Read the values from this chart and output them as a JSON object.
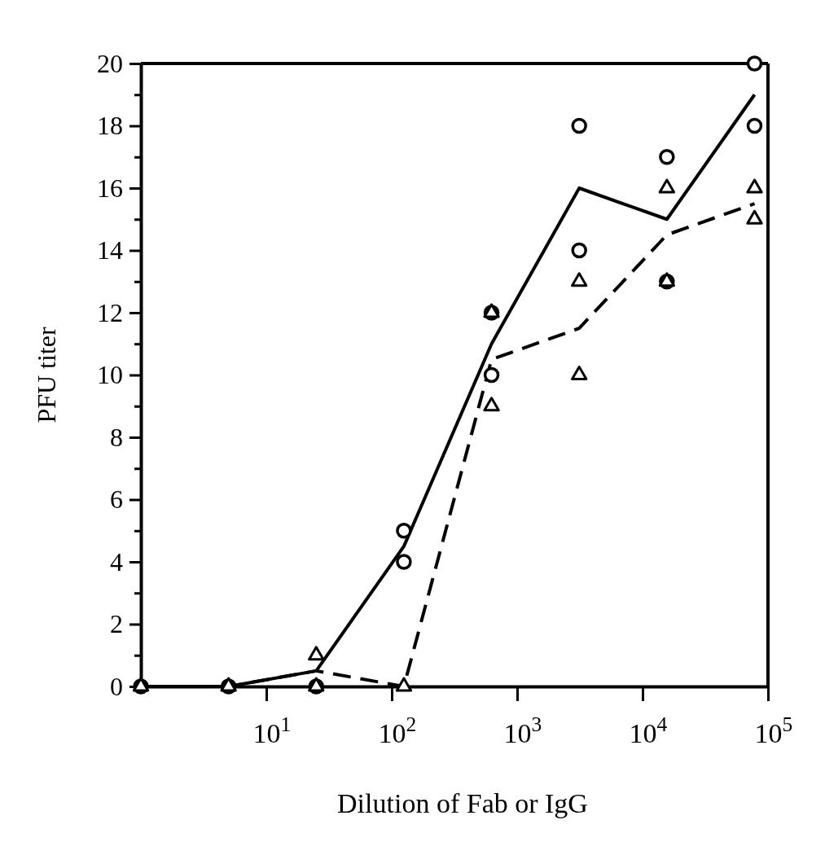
{
  "chart_data": {
    "type": "scatter",
    "xlabel": "Dilution of Fab or IgG",
    "ylabel": "PFU titer",
    "log": "x",
    "grid": false,
    "xlim": [
      1,
      100000
    ],
    "ylim": [
      0,
      20
    ],
    "xticks": [
      {
        "value": 10,
        "label": "10$^{1}$"
      },
      {
        "value": 100,
        "label": "10$^{2}$"
      },
      {
        "value": 1000,
        "label": "10$^{3}$"
      },
      {
        "value": 10000,
        "label": "10$^{4}$"
      },
      {
        "value": 100000,
        "label": "10$^{5}$"
      }
    ],
    "yticks": [
      0,
      {
        "value": 1,
        "label": null
      },
      2,
      {
        "value": 3,
        "label": null
      },
      4,
      {
        "value": 5,
        "label": null
      },
      6,
      {
        "value": 7,
        "label": null
      },
      8,
      {
        "value": 9,
        "label": null
      },
      10,
      {
        "value": 11,
        "label": null
      },
      12,
      {
        "value": 13,
        "label": null
      },
      14,
      {
        "value": 15,
        "label": null
      },
      16,
      {
        "value": 17,
        "label": null
      },
      18,
      {
        "value": 19,
        "label": null
      },
      20
    ],
    "series": [
      {
        "type": "line",
        "color": "#000000",
        "line_style": "solid",
        "marker": "none",
        "x": [
          1,
          5,
          25,
          125,
          625,
          3125,
          15625,
          78125
        ],
        "values": [
          0,
          0,
          0.5,
          4.5,
          11,
          16,
          15,
          19
        ]
      },
      {
        "type": "line",
        "color": "#000000",
        "line_style": "dashed",
        "marker": "none",
        "x": [
          1,
          5,
          25,
          125,
          625,
          3125,
          15625,
          78125
        ],
        "values": [
          0,
          0,
          0.5,
          0,
          10.5,
          11.5,
          14.5,
          15.5
        ]
      },
      {
        "color": "#000000",
        "marker": "circle",
        "x": [
          1,
          5,
          25,
          125,
          125,
          625,
          625,
          3125,
          3125,
          15625,
          15625,
          78125,
          78125
        ],
        "values": [
          0,
          0,
          0,
          5,
          4,
          12,
          10,
          18,
          14,
          17,
          13,
          20,
          18
        ]
      },
      {
        "color": "#000000",
        "marker": "triangle",
        "x": [
          1,
          5,
          25,
          25,
          125,
          625,
          625,
          3125,
          3125,
          15625,
          15625,
          78125,
          78125
        ],
        "values": [
          0,
          0,
          1,
          0,
          0,
          12,
          9,
          13,
          10,
          16,
          13,
          16,
          15
        ]
      }
    ]
  }
}
